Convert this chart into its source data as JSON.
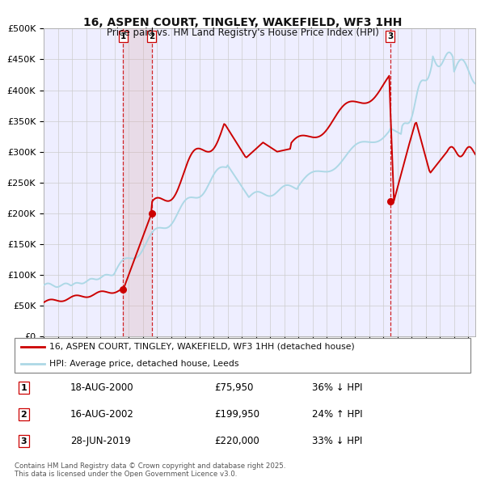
{
  "title": "16, ASPEN COURT, TINGLEY, WAKEFIELD, WF3 1HH",
  "subtitle": "Price paid vs. HM Land Registry's House Price Index (HPI)",
  "legend_label_red": "16, ASPEN COURT, TINGLEY, WAKEFIELD, WF3 1HH (detached house)",
  "legend_label_blue": "HPI: Average price, detached house, Leeds",
  "footer_line1": "Contains HM Land Registry data © Crown copyright and database right 2025.",
  "footer_line2": "This data is licensed under the Open Government Licence v3.0.",
  "transactions": [
    {
      "label": "1",
      "date": "18-AUG-2000",
      "price": "£75,950",
      "hpi": "36% ↓ HPI",
      "x_year": 2000.625
    },
    {
      "label": "2",
      "date": "16-AUG-2002",
      "price": "£199,950",
      "hpi": "24% ↑ HPI",
      "x_year": 2002.625
    },
    {
      "label": "3",
      "date": "28-JUN-2019",
      "price": "£220,000",
      "hpi": "33% ↓ HPI",
      "x_year": 2019.5
    }
  ],
  "transaction_prices": [
    75950,
    199950,
    220000
  ],
  "hpi_color": "#add8e6",
  "price_color": "#cc0000",
  "vline_color": "#cc0000",
  "vline_shade_color": "#ddb0b0",
  "xlim": [
    1995,
    2025.5
  ],
  "ylim": [
    0,
    500000
  ],
  "ytick_values": [
    0,
    50000,
    100000,
    150000,
    200000,
    250000,
    300000,
    350000,
    400000,
    450000,
    500000
  ],
  "grid_color": "#cccccc",
  "background_color": "#ffffff",
  "plot_background": "#eeeeff"
}
